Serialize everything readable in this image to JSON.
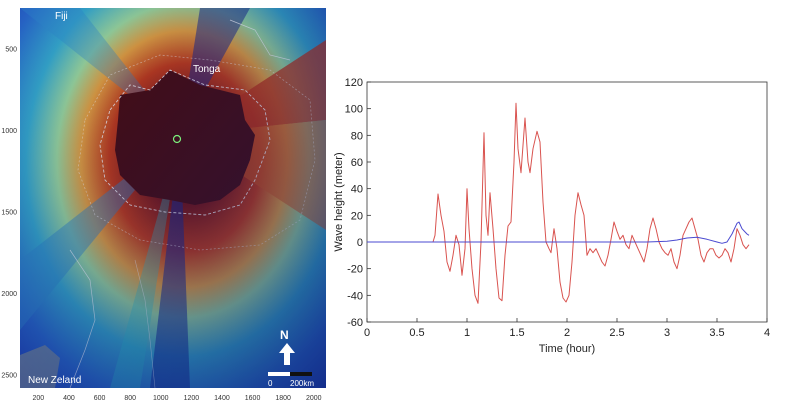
{
  "map": {
    "place_labels": [
      "Fiji",
      "Tonga",
      "New Zeland"
    ],
    "x_ticks": [
      200,
      400,
      600,
      800,
      1000,
      1200,
      1400,
      1600,
      1800,
      2000
    ],
    "y_ticks": [
      500,
      1000,
      1500,
      2000,
      2500
    ],
    "x_range": [
      80,
      2080
    ],
    "y_range": [
      250,
      2580
    ],
    "north_label": "N",
    "scale_bar": {
      "start_label": "0",
      "end_label": "200km"
    },
    "colors": {
      "ocean_deep": "#1d3fb0",
      "high": "#4a0a0a",
      "mid": "#c83a12",
      "low": "#34a6c9"
    }
  },
  "chart_data": {
    "type": "line",
    "title": "",
    "xlabel": "Time (hour)",
    "ylabel": "Wave height (meter)",
    "xlim": [
      0,
      4
    ],
    "ylim": [
      -60,
      120
    ],
    "x_ticks": [
      0,
      0.5,
      1,
      1.5,
      2,
      2.5,
      3,
      3.5,
      4
    ],
    "y_ticks": [
      -60,
      -40,
      -20,
      0,
      20,
      40,
      60,
      80,
      100,
      120
    ],
    "grid": false,
    "series": [
      {
        "color": "#d9534f",
        "points": [
          [
            0,
            0
          ],
          [
            0.66,
            0
          ],
          [
            0.68,
            5
          ],
          [
            0.71,
            36
          ],
          [
            0.74,
            20
          ],
          [
            0.77,
            8
          ],
          [
            0.8,
            -15
          ],
          [
            0.83,
            -22
          ],
          [
            0.86,
            -10
          ],
          [
            0.89,
            5
          ],
          [
            0.92,
            -2
          ],
          [
            0.95,
            -25
          ],
          [
            0.98,
            -5
          ],
          [
            1.0,
            40
          ],
          [
            1.02,
            10
          ],
          [
            1.05,
            -20
          ],
          [
            1.08,
            -40
          ],
          [
            1.11,
            -46
          ],
          [
            1.14,
            0
          ],
          [
            1.17,
            82
          ],
          [
            1.19,
            20
          ],
          [
            1.21,
            5
          ],
          [
            1.23,
            37
          ],
          [
            1.26,
            10
          ],
          [
            1.29,
            -20
          ],
          [
            1.32,
            -42
          ],
          [
            1.35,
            -44
          ],
          [
            1.38,
            -10
          ],
          [
            1.41,
            12
          ],
          [
            1.44,
            15
          ],
          [
            1.47,
            60
          ],
          [
            1.49,
            104
          ],
          [
            1.51,
            70
          ],
          [
            1.54,
            52
          ],
          [
            1.58,
            93
          ],
          [
            1.61,
            60
          ],
          [
            1.63,
            52
          ],
          [
            1.66,
            70
          ],
          [
            1.7,
            83
          ],
          [
            1.73,
            75
          ],
          [
            1.76,
            30
          ],
          [
            1.79,
            0
          ],
          [
            1.82,
            -5
          ],
          [
            1.84,
            -8
          ],
          [
            1.87,
            10
          ],
          [
            1.9,
            -5
          ],
          [
            1.93,
            -30
          ],
          [
            1.96,
            -42
          ],
          [
            1.99,
            -45
          ],
          [
            2.02,
            -40
          ],
          [
            2.05,
            -15
          ],
          [
            2.08,
            20
          ],
          [
            2.11,
            37
          ],
          [
            2.14,
            28
          ],
          [
            2.17,
            20
          ],
          [
            2.2,
            -10
          ],
          [
            2.23,
            -5
          ],
          [
            2.26,
            -8
          ],
          [
            2.29,
            -5
          ],
          [
            2.32,
            -10
          ],
          [
            2.35,
            -15
          ],
          [
            2.38,
            -18
          ],
          [
            2.41,
            -10
          ],
          [
            2.44,
            2
          ],
          [
            2.47,
            15
          ],
          [
            2.5,
            8
          ],
          [
            2.53,
            2
          ],
          [
            2.56,
            5
          ],
          [
            2.59,
            -2
          ],
          [
            2.62,
            -5
          ],
          [
            2.65,
            5
          ],
          [
            2.68,
            0
          ],
          [
            2.71,
            -5
          ],
          [
            2.74,
            -10
          ],
          [
            2.77,
            -15
          ],
          [
            2.8,
            -5
          ],
          [
            2.83,
            10
          ],
          [
            2.86,
            18
          ],
          [
            2.89,
            10
          ],
          [
            2.92,
            0
          ],
          [
            2.95,
            -5
          ],
          [
            2.98,
            -8
          ],
          [
            3.01,
            -10
          ],
          [
            3.04,
            -5
          ],
          [
            3.07,
            -15
          ],
          [
            3.1,
            -20
          ],
          [
            3.13,
            -10
          ],
          [
            3.16,
            5
          ],
          [
            3.19,
            10
          ],
          [
            3.22,
            15
          ],
          [
            3.25,
            18
          ],
          [
            3.28,
            10
          ],
          [
            3.31,
            2
          ],
          [
            3.34,
            -10
          ],
          [
            3.37,
            -15
          ],
          [
            3.4,
            -8
          ],
          [
            3.43,
            -5
          ],
          [
            3.46,
            -5
          ],
          [
            3.49,
            -10
          ],
          [
            3.52,
            -12
          ],
          [
            3.55,
            -10
          ],
          [
            3.58,
            -5
          ],
          [
            3.61,
            -8
          ],
          [
            3.64,
            -15
          ],
          [
            3.67,
            -5
          ],
          [
            3.7,
            10
          ],
          [
            3.73,
            5
          ],
          [
            3.76,
            -2
          ],
          [
            3.79,
            -5
          ],
          [
            3.82,
            -2
          ]
        ]
      },
      {
        "color": "#4a4ad0",
        "points": [
          [
            0,
            0
          ],
          [
            2.8,
            0
          ],
          [
            3.0,
            0.5
          ],
          [
            3.1,
            1.5
          ],
          [
            3.2,
            3
          ],
          [
            3.3,
            3.5
          ],
          [
            3.4,
            2
          ],
          [
            3.5,
            0
          ],
          [
            3.55,
            -1
          ],
          [
            3.6,
            0
          ],
          [
            3.65,
            6
          ],
          [
            3.7,
            14
          ],
          [
            3.72,
            15
          ],
          [
            3.75,
            10
          ],
          [
            3.8,
            6
          ],
          [
            3.82,
            5
          ]
        ]
      }
    ]
  }
}
